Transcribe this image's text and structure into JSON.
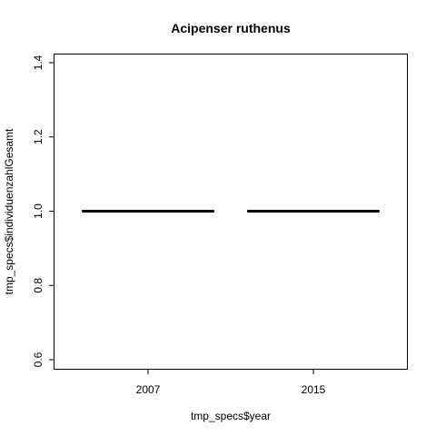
{
  "chart_data": {
    "type": "box",
    "title": "Acipenser ruthenus",
    "xlabel": "tmp_specs$year",
    "ylabel": "tmp_specs$individuenzahlGesamt",
    "categories": [
      "2007",
      "2015"
    ],
    "values": [
      1.0,
      1.0
    ],
    "ylim": [
      0.6,
      1.4
    ],
    "yticks": [
      0.6,
      0.8,
      1.0,
      1.2,
      1.4
    ],
    "ytick_labels": [
      "0.6",
      "0.8",
      "1.0",
      "1.2",
      "1.4"
    ],
    "grid": false,
    "colors": {
      "line": "#000000",
      "frame": "#000000",
      "background": "#ffffff"
    }
  }
}
